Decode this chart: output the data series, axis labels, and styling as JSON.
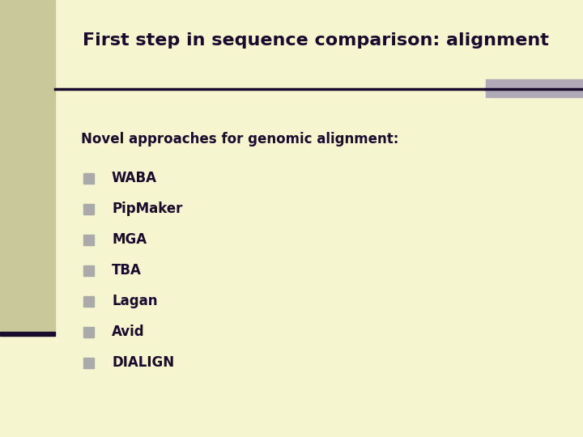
{
  "title": "First step in sequence comparison: alignment",
  "subtitle": "Novel approaches for genomic alignment:",
  "items": [
    "WABA",
    "PipMaker",
    "MGA",
    "TBA",
    "Lagan",
    "Avid",
    "DIALIGN"
  ],
  "bg_color": "#f5f5d0",
  "left_bar_color": "#c8c89a",
  "title_color": "#1a0a2e",
  "text_color": "#1a0a2e",
  "line_color": "#1a0a2e",
  "right_rect_color": "#b0aab8",
  "bullet_color": "#aaaaaa",
  "title_fontsize": 16,
  "subtitle_fontsize": 12,
  "item_fontsize": 12
}
